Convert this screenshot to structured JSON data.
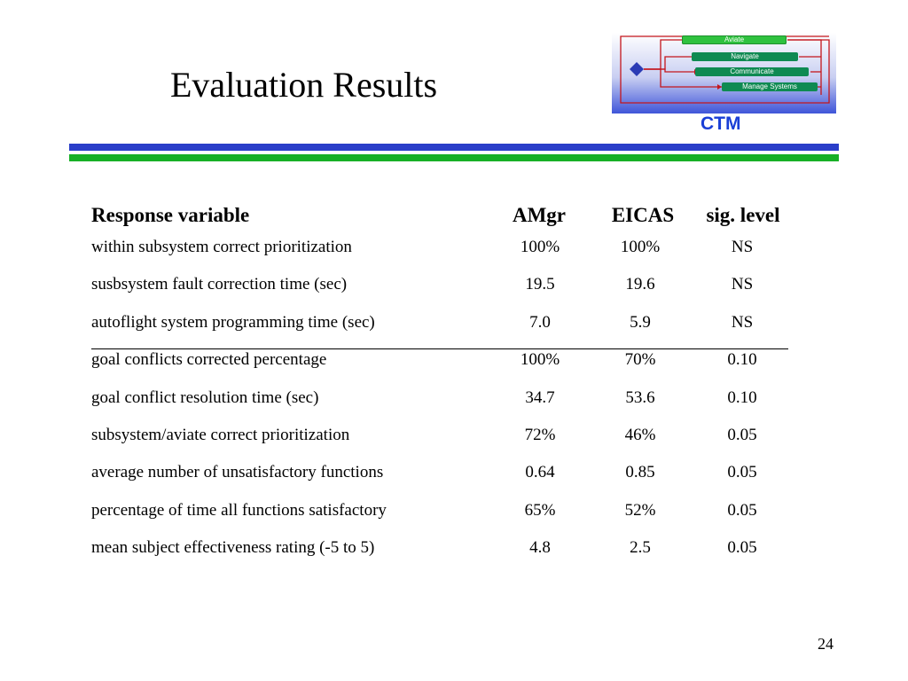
{
  "slide": {
    "title": "Evaluation Results",
    "page_number": "24"
  },
  "logo": {
    "items": [
      "Aviate",
      "Navigate",
      "Communicate",
      "Manage Systems"
    ],
    "label": "CTM",
    "colors": {
      "pill_green": "#2fc23f",
      "pill_blue_green": "#0f8a52",
      "background_top": "#ffffff",
      "background_bottom": "#3f55d9",
      "arrow_red": "#c4161c",
      "diamond": "#2b3bb5",
      "label": "#1a3fd6"
    }
  },
  "rules": {
    "top_color": "#2a3ec9",
    "bottom_color": "#17b026"
  },
  "table": {
    "headers": [
      "Response variable",
      "AMgr",
      "EICAS",
      "sig. level"
    ],
    "rows": [
      [
        "within subsystem correct prioritization",
        "100%",
        "100%",
        "NS"
      ],
      [
        "susbsystem fault correction time (sec)",
        "19.5",
        "19.6",
        "NS"
      ],
      [
        "autoflight system programming time (sec)",
        "7.0",
        "5.9",
        "NS"
      ],
      [
        "goal conflicts corrected percentage",
        "100%",
        "70%",
        "0.10"
      ],
      [
        "goal conflict resolution time (sec)",
        "34.7",
        "53.6",
        "0.10"
      ],
      [
        "subsystem/aviate correct prioritization",
        "72%",
        "46%",
        "0.05"
      ],
      [
        "average number of unsatisfactory functions",
        "0.64",
        "0.85",
        "0.05"
      ],
      [
        "percentage of time all functions satisfactory",
        "65%",
        "52%",
        "0.05"
      ],
      [
        "mean subject effectiveness rating (-5 to 5)",
        "4.8",
        "2.5",
        "0.05"
      ]
    ]
  }
}
